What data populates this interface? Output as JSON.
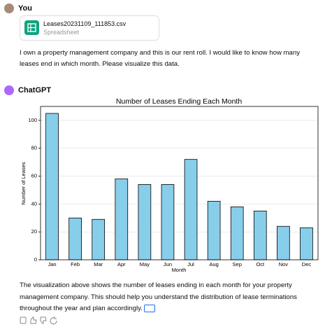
{
  "user": {
    "name": "You",
    "file_name": "Leases20231109_111853.csv",
    "file_type": "Spreadsheet",
    "message_lines": [
      "I own a property management company and this is our rent roll. I would like to know how many",
      "leases end in which month. Please visualize this data."
    ]
  },
  "assistant": {
    "name": "ChatGPT",
    "response_lines": [
      "The visualization above shows the number of leases ending in each month for your property",
      "management company. This should help you understand the distribution of lease terminations",
      "throughout the year and plan accordingly."
    ]
  },
  "chart_data": {
    "type": "bar",
    "title": "Number of Leases Ending Each Month",
    "x_label": "Month",
    "y_label": "Number of Leases",
    "categories": [
      "Jan",
      "Feb",
      "Mar",
      "Apr",
      "May",
      "Jun",
      "Jul",
      "Aug",
      "Sep",
      "Oct",
      "Nov",
      "Dec"
    ],
    "values": [
      105,
      30,
      29,
      58,
      54,
      54,
      72,
      42,
      38,
      35,
      24,
      23
    ],
    "color": "#87ceeb",
    "ylim": [
      0,
      110
    ],
    "yticks": [
      0,
      20,
      40,
      60,
      80,
      100
    ],
    "grid": true
  }
}
